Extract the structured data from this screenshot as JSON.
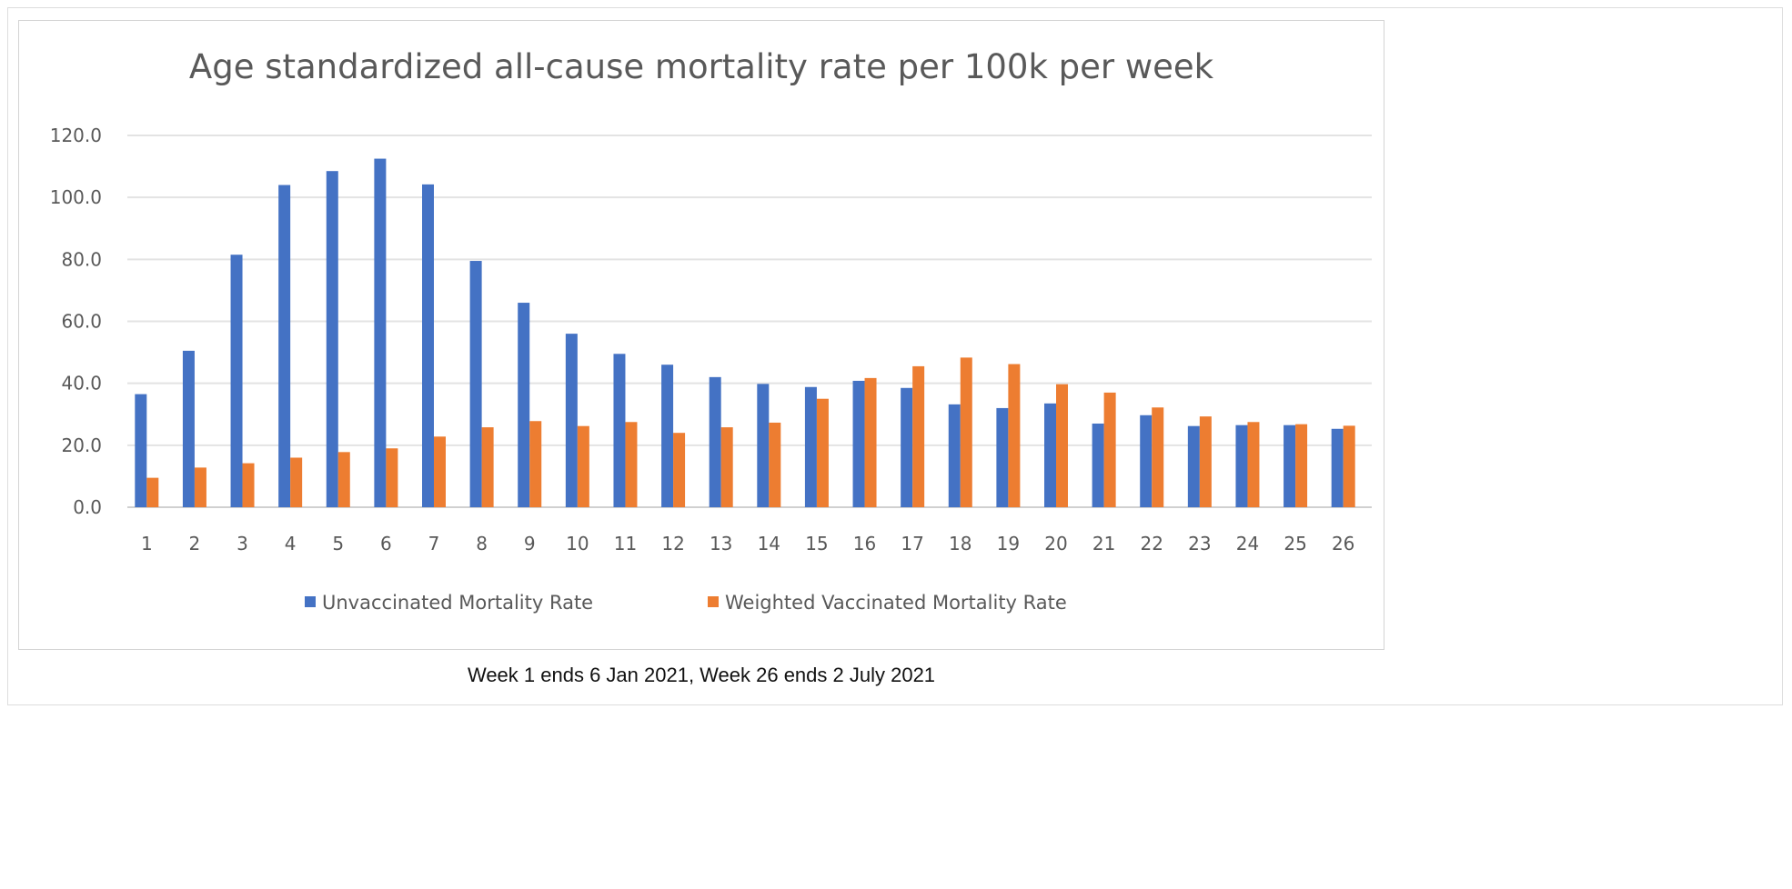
{
  "chart_data": {
    "type": "bar",
    "title": "Age standardized all-cause mortality rate per 100k per week",
    "caption": "Week 1 ends 6 Jan 2021, Week 26 ends 2 July 2021",
    "xlabel": "",
    "ylabel": "",
    "ylim": [
      0,
      120
    ],
    "yticks": [
      "0.0",
      "20.0",
      "40.0",
      "60.0",
      "80.0",
      "100.0",
      "120.0"
    ],
    "grid": true,
    "legend_position": "bottom",
    "categories": [
      "1",
      "2",
      "3",
      "4",
      "5",
      "6",
      "7",
      "8",
      "9",
      "10",
      "11",
      "12",
      "13",
      "14",
      "15",
      "16",
      "17",
      "18",
      "19",
      "20",
      "21",
      "22",
      "23",
      "24",
      "25",
      "26"
    ],
    "series": [
      {
        "name": "Unvaccinated Mortality Rate",
        "color": "#4472C4",
        "values": [
          36.5,
          50.5,
          81.5,
          104.0,
          108.5,
          112.5,
          104.2,
          79.5,
          66.0,
          56.0,
          49.5,
          46.0,
          42.0,
          39.8,
          38.8,
          40.8,
          38.5,
          33.2,
          32.0,
          33.5,
          27.0,
          29.7,
          26.2,
          26.5,
          26.5,
          25.3
        ]
      },
      {
        "name": "Weighted Vaccinated Mortality Rate",
        "color": "#ED7D31",
        "values": [
          9.5,
          12.8,
          14.2,
          16.0,
          17.8,
          19.0,
          22.8,
          25.8,
          27.8,
          26.2,
          27.5,
          24.0,
          25.8,
          27.3,
          35.0,
          41.7,
          45.5,
          48.3,
          46.2,
          39.7,
          37.0,
          32.2,
          29.3,
          27.5,
          26.8,
          26.3
        ]
      }
    ]
  }
}
